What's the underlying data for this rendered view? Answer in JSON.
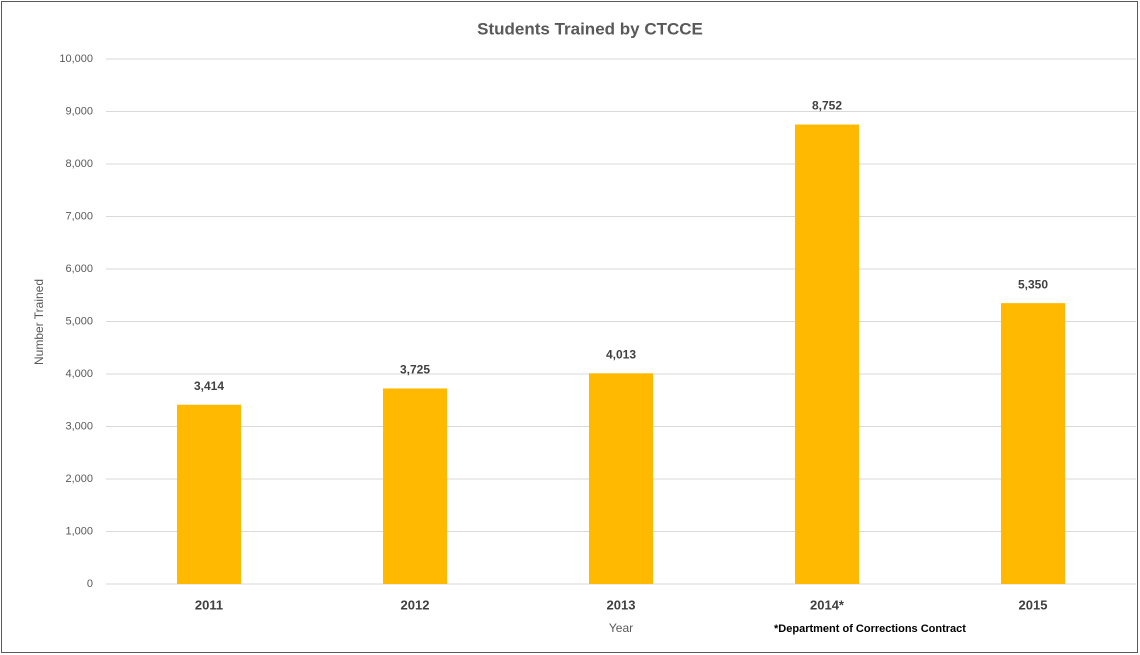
{
  "chart_data": {
    "type": "bar",
    "title": "Students Trained by CTCCE",
    "x_label": "Year",
    "y_label": "Number Trained",
    "annotation": "*Department of Corrections Contract",
    "categories": [
      "2011",
      "2012",
      "2013",
      "2014*",
      "2015"
    ],
    "values": [
      3414,
      3725,
      4013,
      8752,
      5350
    ],
    "value_labels": [
      "3,414",
      "3,725",
      "4,013",
      "8,752",
      "5,350"
    ],
    "color": "#ffb900",
    "ylim": [
      0,
      10000
    ],
    "yticks": [
      0,
      {
        "value": 1000,
        "label": "1,000"
      },
      {
        "value": 2000,
        "label": "2,000"
      },
      {
        "value": 3000,
        "label": "3,000"
      },
      {
        "value": 4000,
        "label": "4,000"
      },
      {
        "value": 5000,
        "label": "5,000"
      },
      {
        "value": 6000,
        "label": "6,000"
      },
      {
        "value": 7000,
        "label": "7,000"
      },
      {
        "value": 8000,
        "label": "8,000"
      },
      {
        "value": 9000,
        "label": "9,000"
      },
      {
        "value": 10000,
        "label": "10,000"
      }
    ],
    "grid": true
  }
}
